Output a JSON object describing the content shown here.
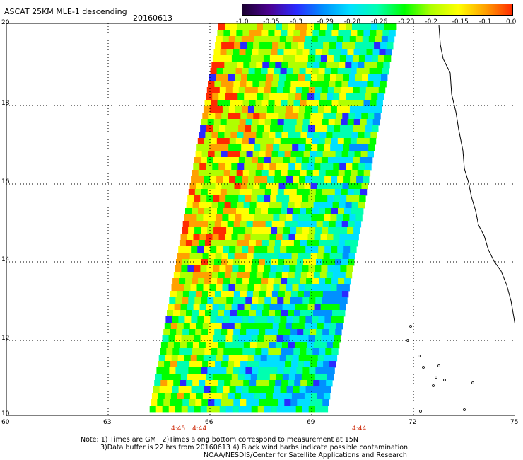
{
  "title": "ASCAT 25KM MLE-1 descending",
  "date": "20160613",
  "colorbar": {
    "ticks": [
      "-1.0",
      "-0.35",
      "-0.3",
      "-0.29",
      "-0.28",
      "-0.26",
      "-0.23",
      "-0.2",
      "-0.15",
      "-0.1",
      "0.0"
    ],
    "colors": [
      "#1a0030",
      "#4b0090",
      "#2a2aff",
      "#0090ff",
      "#00e0ff",
      "#00ffb0",
      "#00ff00",
      "#b0ff00",
      "#ffff00",
      "#ffa000",
      "#ff2a00"
    ]
  },
  "map": {
    "lat_labels": [
      "20",
      "18",
      "16",
      "14",
      "12",
      "10"
    ],
    "lon_labels": [
      "60",
      "63",
      "66",
      "69",
      "72",
      "75"
    ],
    "pass_times": [
      "4:45",
      "4:44",
      "4:44"
    ]
  },
  "note": {
    "line1": "Note: 1) Times are GMT 2)Times along bottom correspond to measurement at 15N",
    "line2": "3)Data buffer is 22 hrs from 20160613 4) Black wind barbs indicate possible contamination",
    "line3": "NOAA/NESDIS/Center for Satellite Applications and Research"
  }
}
